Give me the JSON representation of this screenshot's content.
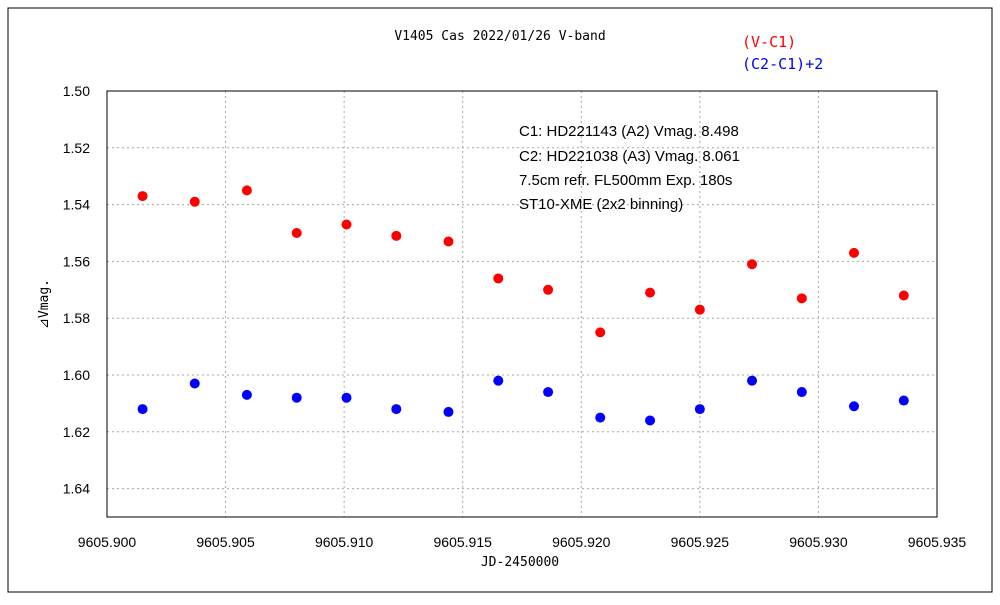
{
  "chart_data": {
    "type": "scatter",
    "title": "V1405 Cas   2022/01/26   V-band",
    "xlabel": "JD-2450000",
    "ylabel": "⊿Vmag.",
    "xlim": [
      9605.9,
      9605.935
    ],
    "ylim": [
      1.5,
      1.65
    ],
    "y_inverted": true,
    "x_ticks": [
      "9605.900",
      "9605.905",
      "9605.910",
      "9605.915",
      "9605.920",
      "9605.925",
      "9605.930",
      "9605.935"
    ],
    "y_ticks": [
      "1.50",
      "1.52",
      "1.54",
      "1.56",
      "1.58",
      "1.60",
      "1.62",
      "1.64"
    ],
    "grid": true,
    "legend_position": "top-right",
    "annotations": [
      "C1: HD221143 (A2) Vmag. 8.498",
      "C2: HD221038 (A3) Vmag. 8.061",
      "7.5cm refr. FL500mm Exp. 180s",
      "ST10-XME (2x2 binning)"
    ],
    "series": [
      {
        "name": "(V-C1)",
        "color": "#ff0000",
        "x": [
          9605.9015,
          9605.9037,
          9605.9059,
          9605.908,
          9605.9101,
          9605.9122,
          9605.9144,
          9605.9165,
          9605.9186,
          9605.9208,
          9605.9229,
          9605.925,
          9605.9272,
          9605.9293,
          9605.9315,
          9605.9336
        ],
        "y": [
          1.537,
          1.539,
          1.535,
          1.55,
          1.547,
          1.551,
          1.553,
          1.566,
          1.57,
          1.585,
          1.571,
          1.577,
          1.561,
          1.573,
          1.557,
          1.572
        ]
      },
      {
        "name": "(C2-C1)+2",
        "color": "#0000ff",
        "x": [
          9605.9015,
          9605.9037,
          9605.9059,
          9605.908,
          9605.9101,
          9605.9122,
          9605.9144,
          9605.9165,
          9605.9186,
          9605.9208,
          9605.9229,
          9605.925,
          9605.9272,
          9605.9293,
          9605.9315,
          9605.9336
        ],
        "y": [
          1.612,
          1.603,
          1.607,
          1.608,
          1.608,
          1.612,
          1.613,
          1.602,
          1.606,
          1.615,
          1.616,
          1.612,
          1.602,
          1.606,
          1.611,
          1.609
        ]
      }
    ]
  }
}
